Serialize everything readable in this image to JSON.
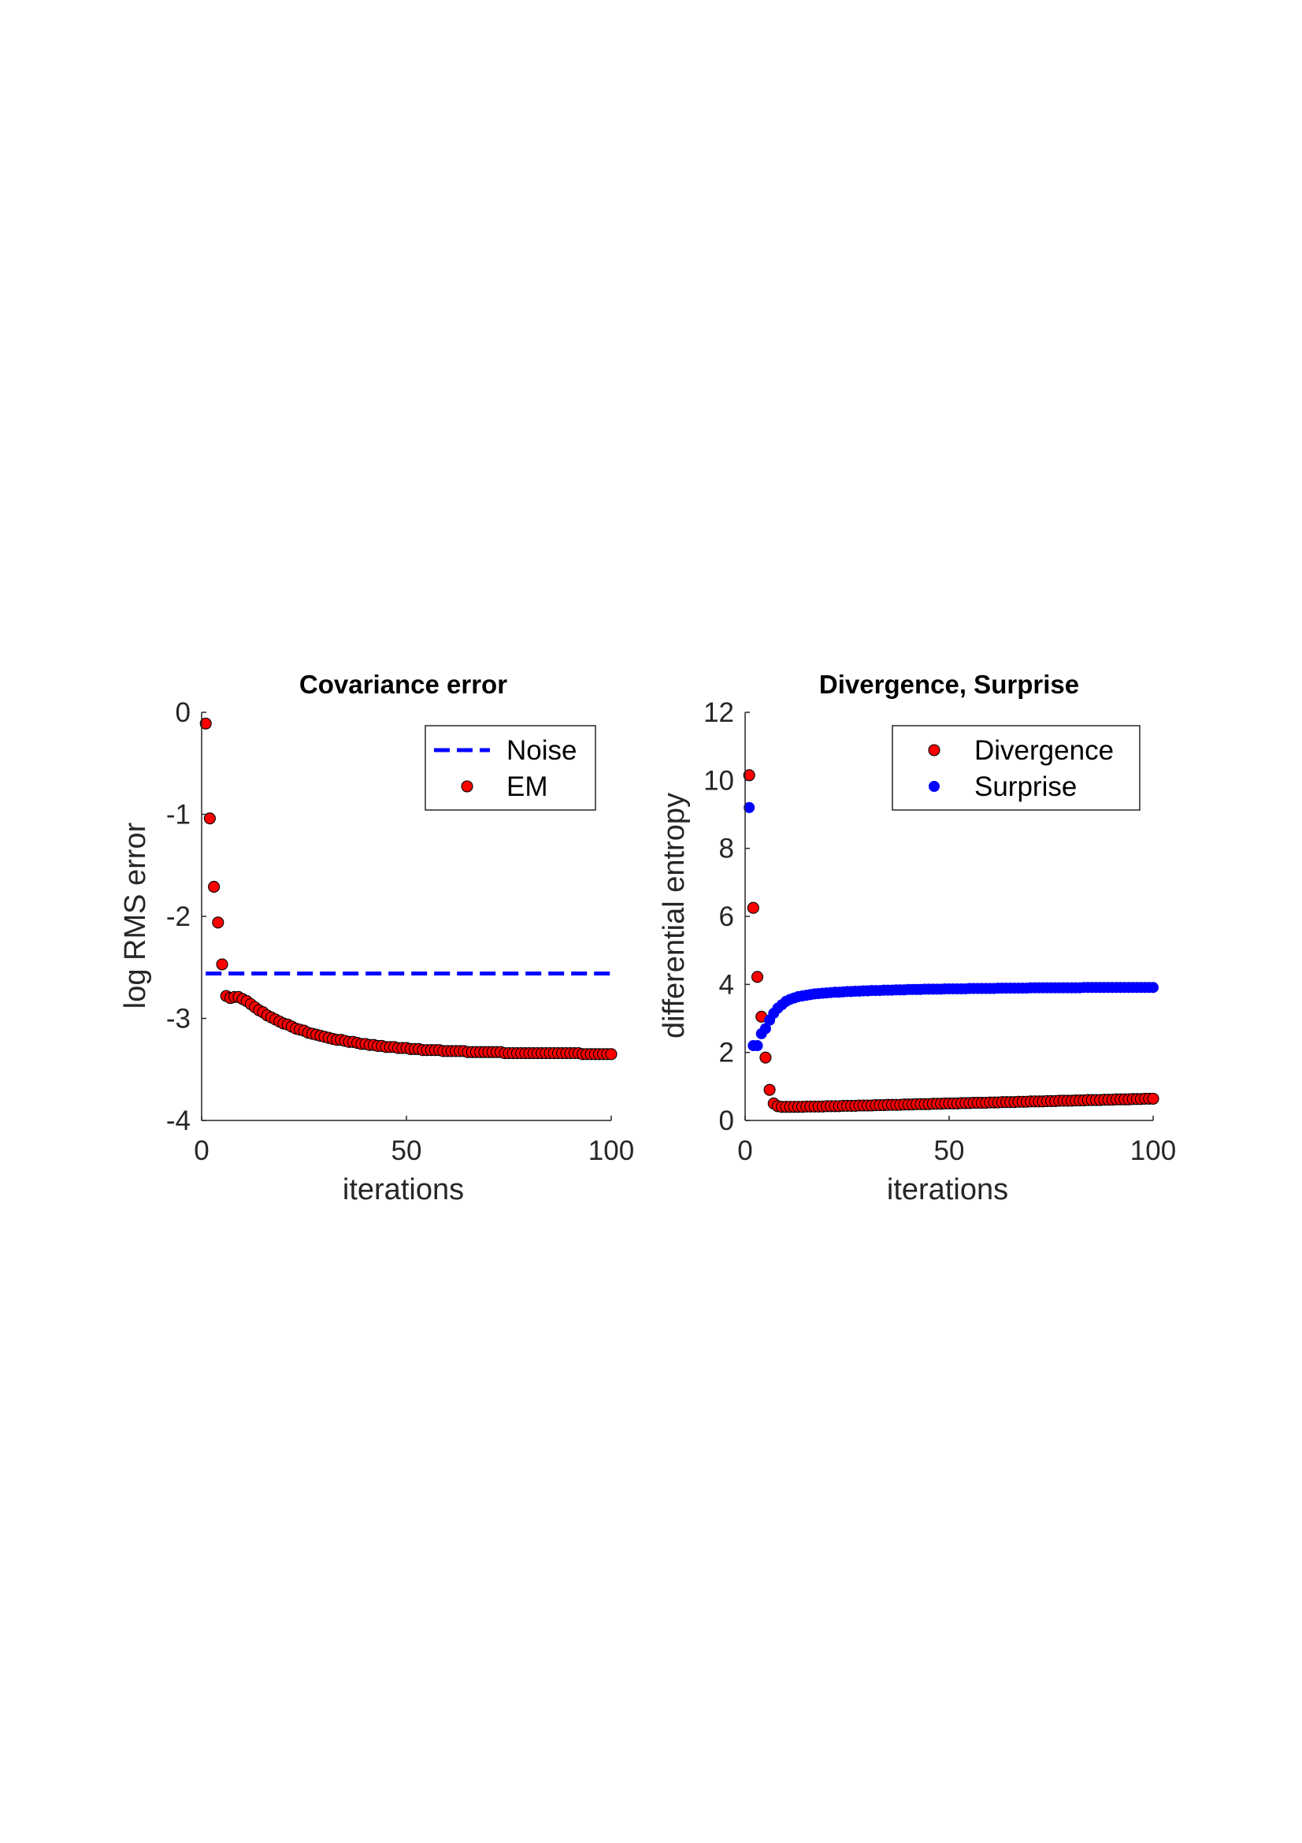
{
  "chart_data": [
    {
      "type": "scatter",
      "title": "Covariance error",
      "xlabel": "iterations",
      "ylabel": "log RMS error",
      "xlim": [
        0,
        100
      ],
      "ylim": [
        -4,
        0
      ],
      "xticks": [
        "0",
        "50",
        "100"
      ],
      "yticks": [
        "0",
        "-1",
        "-2",
        "-3",
        "-4"
      ],
      "legend_position": "top-right",
      "grid": false,
      "series": [
        {
          "name": "Noise",
          "style": "dashed-line",
          "color": "#0000ff",
          "y_constant": -2.56,
          "x_range": [
            1,
            100
          ]
        },
        {
          "name": "EM",
          "style": "markers",
          "color": "#ff0000",
          "x": [
            1,
            2,
            3,
            4,
            5,
            6,
            7,
            8,
            9,
            10,
            11,
            12,
            13,
            14,
            15,
            16,
            17,
            18,
            19,
            20,
            21,
            22,
            23,
            24,
            25,
            26,
            27,
            28,
            29,
            30,
            31,
            32,
            33,
            34,
            35,
            36,
            37,
            38,
            39,
            40,
            41,
            42,
            43,
            44,
            45,
            46,
            47,
            48,
            49,
            50,
            51,
            52,
            53,
            54,
            55,
            56,
            57,
            58,
            59,
            60,
            61,
            62,
            63,
            64,
            65,
            66,
            67,
            68,
            69,
            70,
            71,
            72,
            73,
            74,
            75,
            76,
            77,
            78,
            79,
            80,
            81,
            82,
            83,
            84,
            85,
            86,
            87,
            88,
            89,
            90,
            91,
            92,
            93,
            94,
            95,
            96,
            97,
            98,
            99,
            100
          ],
          "y": [
            -0.11,
            -1.04,
            -1.71,
            -2.06,
            -2.47,
            -2.78,
            -2.8,
            -2.79,
            -2.79,
            -2.81,
            -2.83,
            -2.86,
            -2.89,
            -2.92,
            -2.94,
            -2.97,
            -2.99,
            -3.01,
            -3.03,
            -3.05,
            -3.06,
            -3.08,
            -3.1,
            -3.11,
            -3.12,
            -3.14,
            -3.15,
            -3.16,
            -3.17,
            -3.18,
            -3.19,
            -3.2,
            -3.21,
            -3.21,
            -3.22,
            -3.23,
            -3.23,
            -3.24,
            -3.25,
            -3.25,
            -3.26,
            -3.26,
            -3.27,
            -3.27,
            -3.28,
            -3.28,
            -3.28,
            -3.29,
            -3.29,
            -3.29,
            -3.3,
            -3.3,
            -3.3,
            -3.31,
            -3.31,
            -3.31,
            -3.31,
            -3.31,
            -3.32,
            -3.32,
            -3.32,
            -3.32,
            -3.32,
            -3.32,
            -3.33,
            -3.33,
            -3.33,
            -3.33,
            -3.33,
            -3.33,
            -3.33,
            -3.33,
            -3.33,
            -3.34,
            -3.34,
            -3.34,
            -3.34,
            -3.34,
            -3.34,
            -3.34,
            -3.34,
            -3.34,
            -3.34,
            -3.34,
            -3.34,
            -3.34,
            -3.34,
            -3.34,
            -3.34,
            -3.34,
            -3.34,
            -3.34,
            -3.35,
            -3.35,
            -3.35,
            -3.35,
            -3.35,
            -3.35,
            -3.35,
            -3.35
          ]
        }
      ]
    },
    {
      "type": "scatter",
      "title": "Divergence, Surprise",
      "xlabel": "iterations",
      "ylabel": "differential entropy",
      "xlim": [
        0,
        100
      ],
      "ylim": [
        0,
        12
      ],
      "xticks": [
        "0",
        "50",
        "100"
      ],
      "yticks": [
        "0",
        "2",
        "4",
        "6",
        "8",
        "10",
        "12"
      ],
      "legend_position": "top-right",
      "grid": false,
      "series": [
        {
          "name": "Divergence",
          "style": "markers",
          "color": "#ff0000",
          "x": [
            1,
            2,
            3,
            4,
            5,
            6,
            7,
            8,
            9,
            10,
            11,
            12,
            13,
            14,
            15,
            16,
            17,
            18,
            19,
            20,
            21,
            22,
            23,
            24,
            25,
            26,
            27,
            28,
            29,
            30,
            31,
            32,
            33,
            34,
            35,
            36,
            37,
            38,
            39,
            40,
            41,
            42,
            43,
            44,
            45,
            46,
            47,
            48,
            49,
            50,
            51,
            52,
            53,
            54,
            55,
            56,
            57,
            58,
            59,
            60,
            61,
            62,
            63,
            64,
            65,
            66,
            67,
            68,
            69,
            70,
            71,
            72,
            73,
            74,
            75,
            76,
            77,
            78,
            79,
            80,
            81,
            82,
            83,
            84,
            85,
            86,
            87,
            88,
            89,
            90,
            91,
            92,
            93,
            94,
            95,
            96,
            97,
            98,
            99,
            100
          ],
          "y": [
            10.15,
            6.25,
            4.22,
            3.05,
            1.85,
            0.9,
            0.5,
            0.42,
            0.4,
            0.4,
            0.4,
            0.4,
            0.4,
            0.4,
            0.41,
            0.41,
            0.41,
            0.41,
            0.41,
            0.42,
            0.42,
            0.42,
            0.42,
            0.43,
            0.43,
            0.43,
            0.43,
            0.44,
            0.44,
            0.44,
            0.44,
            0.45,
            0.45,
            0.45,
            0.46,
            0.46,
            0.46,
            0.46,
            0.47,
            0.47,
            0.47,
            0.48,
            0.48,
            0.48,
            0.48,
            0.49,
            0.49,
            0.49,
            0.5,
            0.5,
            0.5,
            0.5,
            0.51,
            0.51,
            0.51,
            0.52,
            0.52,
            0.52,
            0.52,
            0.53,
            0.53,
            0.53,
            0.54,
            0.54,
            0.54,
            0.54,
            0.55,
            0.55,
            0.55,
            0.56,
            0.56,
            0.56,
            0.56,
            0.57,
            0.57,
            0.57,
            0.58,
            0.58,
            0.58,
            0.58,
            0.59,
            0.59,
            0.59,
            0.6,
            0.6,
            0.6,
            0.6,
            0.61,
            0.61,
            0.61,
            0.62,
            0.62,
            0.62,
            0.62,
            0.63,
            0.63,
            0.63,
            0.64,
            0.64,
            0.64
          ]
        },
        {
          "name": "Surprise",
          "style": "markers",
          "color": "#0000ff",
          "x": [
            1,
            2,
            3,
            4,
            5,
            6,
            7,
            8,
            9,
            10,
            11,
            12,
            13,
            14,
            15,
            16,
            17,
            18,
            19,
            20,
            21,
            22,
            23,
            24,
            25,
            26,
            27,
            28,
            29,
            30,
            31,
            32,
            33,
            34,
            35,
            36,
            37,
            38,
            39,
            40,
            41,
            42,
            43,
            44,
            45,
            46,
            47,
            48,
            49,
            50,
            51,
            52,
            53,
            54,
            55,
            56,
            57,
            58,
            59,
            60,
            61,
            62,
            63,
            64,
            65,
            66,
            67,
            68,
            69,
            70,
            71,
            72,
            73,
            74,
            75,
            76,
            77,
            78,
            79,
            80,
            81,
            82,
            83,
            84,
            85,
            86,
            87,
            88,
            89,
            90,
            91,
            92,
            93,
            94,
            95,
            96,
            97,
            98,
            99,
            100
          ],
          "y": [
            9.2,
            2.2,
            2.2,
            2.55,
            2.7,
            2.95,
            3.15,
            3.3,
            3.4,
            3.5,
            3.56,
            3.6,
            3.64,
            3.66,
            3.68,
            3.7,
            3.72,
            3.73,
            3.74,
            3.75,
            3.76,
            3.77,
            3.77,
            3.78,
            3.79,
            3.79,
            3.8,
            3.8,
            3.81,
            3.81,
            3.82,
            3.82,
            3.82,
            3.83,
            3.83,
            3.83,
            3.84,
            3.84,
            3.84,
            3.85,
            3.85,
            3.85,
            3.85,
            3.86,
            3.86,
            3.86,
            3.86,
            3.86,
            3.87,
            3.87,
            3.87,
            3.87,
            3.87,
            3.87,
            3.88,
            3.88,
            3.88,
            3.88,
            3.88,
            3.88,
            3.88,
            3.89,
            3.89,
            3.89,
            3.89,
            3.89,
            3.89,
            3.89,
            3.89,
            3.9,
            3.9,
            3.9,
            3.9,
            3.9,
            3.9,
            3.9,
            3.9,
            3.9,
            3.9,
            3.9,
            3.9,
            3.9,
            3.91,
            3.91,
            3.91,
            3.91,
            3.91,
            3.91,
            3.91,
            3.91,
            3.91,
            3.91,
            3.91,
            3.91,
            3.91,
            3.91,
            3.91,
            3.91,
            3.91,
            3.91
          ]
        }
      ]
    }
  ]
}
